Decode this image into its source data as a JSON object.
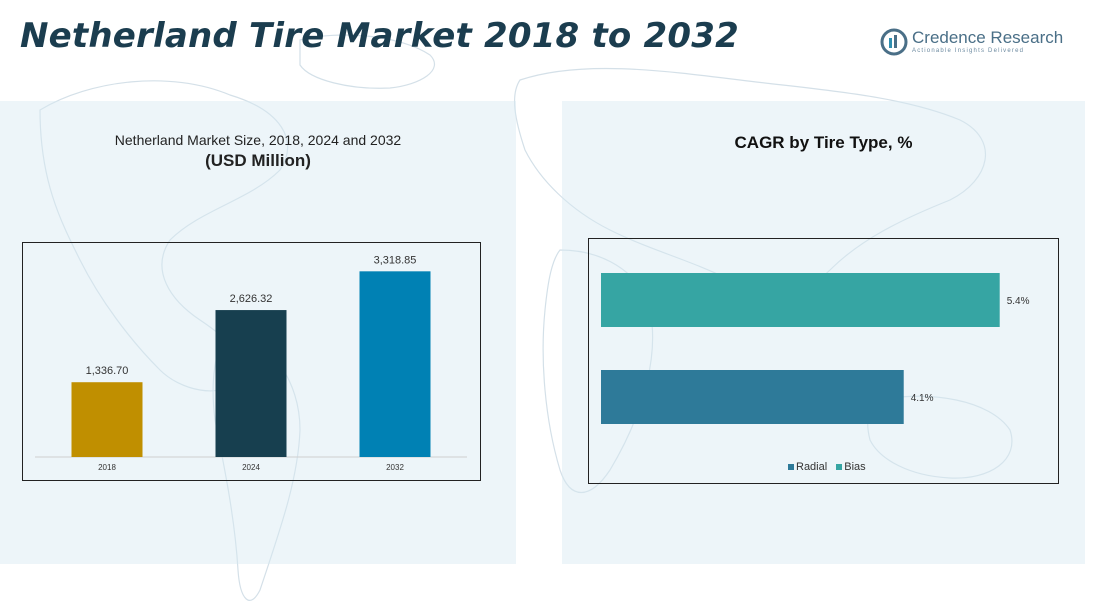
{
  "header": {
    "title": "Netherland  Tire Market 2018 to 2032"
  },
  "logo": {
    "name": "Credence Research",
    "tagline": "Actionable Insights Delivered"
  },
  "left_panel": {
    "title_line1": "Netherland Market Size, 2018, 2024 and 2032",
    "title_line2": "(USD Million)"
  },
  "right_panel": {
    "title": "CAGR by Tire Type, %"
  },
  "colors": {
    "title": "#1b3d4f",
    "bar_2018": "#c08f00",
    "bar_2024": "#173f4f",
    "bar_2032": "#0081b4",
    "radial": "#2e7a99",
    "bias": "#36a5a3"
  },
  "chart_data": [
    {
      "type": "bar",
      "title": "",
      "categories": [
        "2018",
        "2024",
        "2032"
      ],
      "values": [
        1336.7,
        2626.32,
        3318.85
      ],
      "data_labels": [
        "1,336.70",
        "2,626.32",
        "3,318.85"
      ],
      "ylim": [
        0,
        3700
      ],
      "grid": false
    },
    {
      "type": "bar",
      "orientation": "horizontal",
      "title": "",
      "series": [
        {
          "name": "Radial",
          "value": 4.1,
          "label": "4.1%"
        },
        {
          "name": "Bias",
          "value": 5.4,
          "label": "5.4%"
        }
      ],
      "xlim": [
        0,
        6.0
      ],
      "legend": "bottom",
      "grid": false
    }
  ]
}
